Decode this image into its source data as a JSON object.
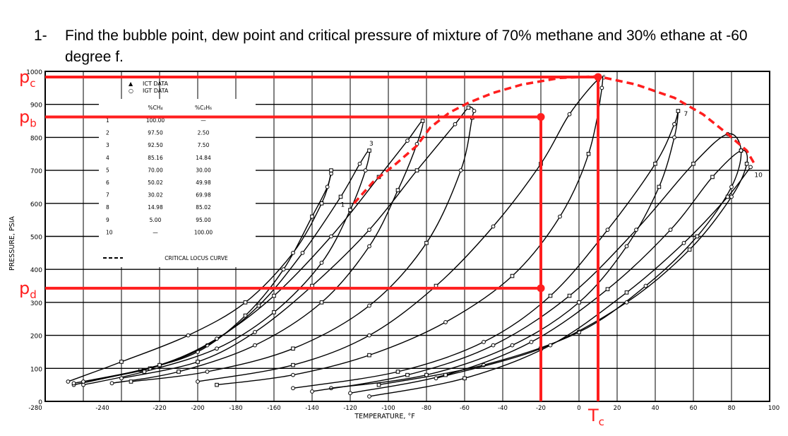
{
  "question": {
    "number": "1-",
    "text": "Find the bubble point, dew point and critical pressure of mixture of 70% methane and 30% ethane at -60 degree f."
  },
  "chart_data": {
    "type": "line",
    "xlabel": "TEMPERATURE, °F",
    "ylabel": "PRESSURE, PSIA",
    "xlim": [
      -280,
      100
    ],
    "ylim": [
      0,
      1000
    ],
    "x_ticks": [
      "-280",
      "-240",
      "-220",
      "-200",
      "-180",
      "-160",
      "-140",
      "-120",
      "-100",
      "-80",
      "-60",
      "-40",
      "-20",
      "0",
      "20",
      "40",
      "60",
      "80",
      "100"
    ],
    "y_ticks": [
      "0",
      "100",
      "200",
      "300",
      "400",
      "500",
      "600",
      "700",
      "800",
      "900",
      "1000"
    ],
    "legend": {
      "markers": [
        {
          "symbol": "▲",
          "label": "ICT DATA"
        },
        {
          "symbol": "○",
          "label": "IGT DATA"
        }
      ],
      "col1_header": "%CH₄",
      "col2_header": "%C₂H₆",
      "rows": [
        {
          "curve": "1",
          "ch4": "100.00",
          "c2h6": "—"
        },
        {
          "curve": "2",
          "ch4": "97.50",
          "c2h6": "2.50"
        },
        {
          "curve": "3",
          "ch4": "92.50",
          "c2h6": "7.50"
        },
        {
          "curve": "4",
          "ch4": "85.16",
          "c2h6": "14.84"
        },
        {
          "curve": "5",
          "ch4": "70.00",
          "c2h6": "30.00"
        },
        {
          "curve": "6",
          "ch4": "50.02",
          "c2h6": "49.98"
        },
        {
          "curve": "7",
          "ch4": "30.02",
          "c2h6": "69.98"
        },
        {
          "curve": "8",
          "ch4": "14.98",
          "c2h6": "85.02"
        },
        {
          "curve": "9",
          "ch4": "5.00",
          "c2h6": "95.00"
        },
        {
          "curve": "10",
          "ch4": "—",
          "c2h6": "100.00"
        }
      ],
      "critical_locus_label": "CRITICAL LOCUS CURVE"
    },
    "series": [
      {
        "label": "2",
        "x": [
          -265,
          -230,
          -200,
          -175,
          -155,
          -140,
          -132,
          -130,
          -130,
          -135,
          -150,
          -175,
          -205,
          -240,
          -268
        ],
        "y": [
          50,
          95,
          150,
          260,
          400,
          560,
          650,
          700,
          690,
          600,
          450,
          300,
          200,
          120,
          60
        ]
      },
      {
        "label": "3",
        "x": [
          -265,
          -225,
          -195,
          -168,
          -145,
          -125,
          -115,
          -110,
          -112,
          -120,
          -135,
          -160,
          -190,
          -228,
          -260
        ],
        "y": [
          55,
          100,
          170,
          290,
          450,
          620,
          720,
          760,
          700,
          580,
          420,
          270,
          160,
          90,
          50
        ]
      },
      {
        "label": "4",
        "x": [
          -260,
          -220,
          -190,
          -160,
          -130,
          -105,
          -90,
          -82,
          -85,
          -95,
          -110,
          -135,
          -170,
          -210,
          -245
        ],
        "y": [
          60,
          110,
          190,
          320,
          500,
          680,
          790,
          850,
          780,
          640,
          470,
          300,
          170,
          90,
          55
        ]
      },
      {
        "label": "5",
        "x": [
          -240,
          -200,
          -170,
          -140,
          -110,
          -85,
          -65,
          -58,
          -55,
          -56,
          -62,
          -80,
          -110,
          -150,
          -195,
          -235
        ],
        "y": [
          70,
          120,
          210,
          350,
          520,
          700,
          840,
          890,
          880,
          860,
          700,
          480,
          290,
          160,
          90,
          60
        ]
      },
      {
        "label": "6",
        "x": [
          -200,
          -150,
          -110,
          -75,
          -45,
          -20,
          -5,
          10,
          12,
          5,
          -10,
          -35,
          -70,
          -110,
          -150,
          -190
        ],
        "y": [
          60,
          110,
          200,
          350,
          530,
          720,
          870,
          975,
          950,
          750,
          560,
          380,
          240,
          140,
          80,
          50
        ]
      },
      {
        "label": "7",
        "x": [
          -150,
          -95,
          -50,
          -15,
          15,
          40,
          50,
          52,
          50,
          42,
          25,
          0,
          -35,
          -80,
          -130
        ],
        "y": [
          40,
          90,
          180,
          320,
          520,
          720,
          840,
          880,
          800,
          650,
          470,
          300,
          170,
          80,
          40
        ]
      },
      {
        "label": "8",
        "x": [
          -140,
          -90,
          -45,
          -5,
          30,
          60,
          78,
          85,
          80,
          62,
          35,
          0,
          -50,
          -105
        ],
        "y": [
          30,
          80,
          170,
          320,
          520,
          720,
          810,
          760,
          650,
          500,
          350,
          210,
          110,
          50
        ]
      },
      {
        "label": "9",
        "x": [
          -120,
          -70,
          -25,
          15,
          48,
          70,
          85,
          88,
          80,
          58,
          25,
          -20,
          -75
        ],
        "y": [
          25,
          80,
          180,
          340,
          520,
          680,
          760,
          720,
          620,
          460,
          300,
          160,
          70
        ]
      },
      {
        "label": "10",
        "x": [
          -110,
          -60,
          -15,
          25,
          55,
          78,
          90
        ],
        "y": [
          15,
          70,
          170,
          330,
          480,
          620,
          710
        ]
      }
    ],
    "critical_locus": {
      "x": [
        -118,
        -108,
        -96,
        -85,
        -78,
        -68,
        -58,
        -45,
        -30,
        -10,
        10,
        30,
        50,
        65,
        78,
        88,
        92
      ],
      "y": [
        600,
        665,
        720,
        775,
        830,
        875,
        905,
        935,
        960,
        980,
        985,
        960,
        920,
        870,
        810,
        760,
        720
      ]
    },
    "annotations": {
      "pc": {
        "label": "p",
        "sub": "c",
        "y": 983
      },
      "pb": {
        "label": "p",
        "sub": "b",
        "y": 862
      },
      "pd": {
        "label": "p",
        "sub": "d",
        "y": 343
      },
      "tc": {
        "label": "T",
        "sub": "c",
        "x": 10
      },
      "guide_x": -20,
      "dots": [
        {
          "x": -20,
          "y": 862
        },
        {
          "x": -20,
          "y": 343
        },
        {
          "x": 10,
          "y": 983
        }
      ],
      "curve_numbers": [
        {
          "text": "1",
          "x": -125,
          "y": 590
        },
        {
          "text": "3",
          "x": -110,
          "y": 775
        },
        {
          "text": "4",
          "x": -75,
          "y": 855
        },
        {
          "text": "6",
          "x": 12,
          "y": 975
        },
        {
          "text": "7",
          "x": 55,
          "y": 865
        },
        {
          "text": "10",
          "x": 92,
          "y": 680
        }
      ],
      "color": "#ff1e1e"
    }
  }
}
